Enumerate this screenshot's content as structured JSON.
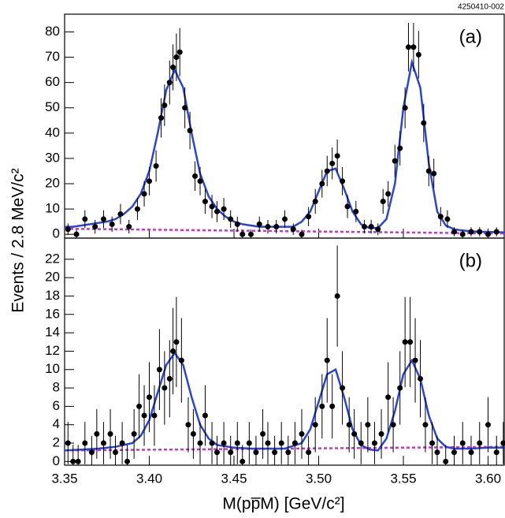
{
  "chart_data": [
    {
      "type": "errorbar",
      "label": "(a)",
      "annotation": "4250410-002",
      "ylabel": "Events / 2.8 MeV/c²",
      "x": [
        3.352,
        3.357,
        3.362,
        3.368,
        3.373,
        3.378,
        3.383,
        3.388,
        3.393,
        3.397,
        3.4,
        3.404,
        3.407,
        3.409,
        3.412,
        3.414,
        3.416,
        3.418,
        3.421,
        3.424,
        3.427,
        3.43,
        3.433,
        3.437,
        3.44,
        3.444,
        3.448,
        3.452,
        3.455,
        3.46,
        3.465,
        3.47,
        3.475,
        3.48,
        3.485,
        3.49,
        3.494,
        3.498,
        3.502,
        3.505,
        3.508,
        3.511,
        3.514,
        3.517,
        3.522,
        3.527,
        3.531,
        3.535,
        3.538,
        3.541,
        3.545,
        3.548,
        3.551,
        3.553,
        3.556,
        3.559,
        3.562,
        3.565,
        3.568,
        3.572,
        3.576,
        3.58,
        3.585,
        3.59,
        3.595,
        3.6,
        3.605
      ],
      "values": [
        2,
        0,
        6,
        3,
        6,
        4,
        8,
        3,
        10,
        16,
        21,
        27,
        46,
        51,
        60,
        66,
        70,
        72,
        50,
        41,
        23,
        21,
        13,
        11,
        9,
        10,
        6,
        4,
        0,
        0,
        4,
        3,
        3,
        6,
        2,
        0,
        7,
        13,
        20,
        25,
        28,
        31,
        21,
        11,
        9,
        3,
        3,
        2,
        13,
        16,
        29,
        34,
        50,
        74,
        74,
        71,
        44,
        25,
        24,
        7,
        6,
        1,
        0,
        1,
        1,
        0,
        1
      ],
      "errors": [
        2.3,
        1.8,
        3.5,
        2.7,
        3.5,
        3,
        4,
        2.7,
        4.4,
        5,
        5.6,
        6.2,
        7.8,
        8.2,
        8.7,
        9.1,
        9.4,
        9.5,
        8.1,
        7.4,
        5.8,
        5.6,
        4.9,
        4.6,
        4.2,
        4.4,
        3.5,
        3,
        1.8,
        1.8,
        3,
        2.7,
        2.7,
        3.5,
        2.3,
        1.8,
        3.8,
        4.9,
        5.5,
        6,
        6.3,
        6.5,
        5.6,
        4.6,
        4.2,
        2.7,
        2.7,
        2.3,
        4.9,
        5,
        6.4,
        6.8,
        8.1,
        9.6,
        9.6,
        9.4,
        7.6,
        6,
        5.9,
        3.8,
        3.5,
        1.8,
        1.8,
        1.8,
        1.8,
        1.8,
        1.8
      ],
      "color": "#000000",
      "fit": {
        "color": "#2a44d6",
        "x": [
          3.35,
          3.355,
          3.36,
          3.365,
          3.37,
          3.375,
          3.38,
          3.385,
          3.39,
          3.395,
          3.4,
          3.405,
          3.41,
          3.415,
          3.42,
          3.425,
          3.43,
          3.435,
          3.44,
          3.445,
          3.45,
          3.455,
          3.46,
          3.465,
          3.47,
          3.475,
          3.48,
          3.485,
          3.49,
          3.495,
          3.5,
          3.505,
          3.51,
          3.515,
          3.52,
          3.525,
          3.53,
          3.535,
          3.54,
          3.545,
          3.55,
          3.555,
          3.56,
          3.565,
          3.57,
          3.575,
          3.58,
          3.585,
          3.59,
          3.595,
          3.6,
          3.605,
          3.61
        ],
        "values": [
          3,
          3,
          3.5,
          4,
          4.5,
          5,
          6,
          8,
          11,
          16,
          25,
          40,
          57,
          65,
          58,
          40,
          24,
          15,
          10,
          7,
          5,
          4,
          3.5,
          3,
          3,
          3,
          3,
          3,
          5,
          9,
          17,
          25,
          26,
          18,
          9,
          4,
          2.5,
          2.5,
          6,
          20,
          50,
          68,
          58,
          28,
          9,
          3.5,
          2,
          1.5,
          1.2,
          1,
          1,
          0.8,
          0.8
        ]
      },
      "background": {
        "color": "#cc33cc",
        "x": [
          3.35,
          3.61
        ],
        "values": [
          2.2,
          0.3
        ]
      },
      "xlim": [
        3.35,
        3.61
      ],
      "xticks": [
        3.35,
        3.4,
        3.45,
        3.5,
        3.55,
        3.6
      ],
      "ylim": [
        -1.5,
        87
      ],
      "yticks": [
        0,
        10,
        20,
        30,
        40,
        50,
        60,
        70,
        80
      ]
    },
    {
      "type": "errorbar",
      "label": "(b)",
      "xlabel": "M(pp̅M) [GeV/c²]",
      "x": [
        3.352,
        3.355,
        3.358,
        3.362,
        3.366,
        3.369,
        3.373,
        3.377,
        3.38,
        3.384,
        3.387,
        3.391,
        3.394,
        3.397,
        3.4,
        3.403,
        3.406,
        3.409,
        3.412,
        3.414,
        3.416,
        3.419,
        3.423,
        3.426,
        3.43,
        3.433,
        3.437,
        3.44,
        3.444,
        3.448,
        3.452,
        3.455,
        3.459,
        3.463,
        3.467,
        3.47,
        3.474,
        3.478,
        3.482,
        3.486,
        3.49,
        3.494,
        3.498,
        3.502,
        3.505,
        3.508,
        3.511,
        3.514,
        3.518,
        3.521,
        3.525,
        3.529,
        3.533,
        3.537,
        3.541,
        3.544,
        3.548,
        3.551,
        3.554,
        3.557,
        3.56,
        3.563,
        3.567,
        3.57,
        3.575,
        3.58,
        3.585,
        3.59,
        3.595,
        3.6,
        3.605,
        3.609
      ],
      "values": [
        2,
        0,
        0,
        2,
        1,
        3,
        2,
        3,
        1,
        2,
        0,
        3,
        6,
        5,
        7,
        5,
        10,
        8,
        9,
        12,
        13,
        11,
        4,
        3,
        2,
        5,
        2,
        1,
        2,
        1,
        2,
        0,
        2,
        1,
        3,
        2,
        1,
        2,
        1,
        2,
        3,
        1,
        4,
        6,
        11,
        6,
        18,
        8,
        4,
        3,
        2,
        4,
        2,
        3,
        7,
        4,
        8,
        13,
        13,
        11,
        9,
        4,
        2,
        1,
        0,
        1,
        2,
        1,
        2,
        4,
        1,
        2
      ],
      "errors": [
        2.3,
        1.8,
        1.8,
        2.3,
        1.8,
        2.7,
        2.3,
        2.7,
        1.8,
        2.3,
        1.8,
        2.7,
        3.5,
        3.3,
        3.8,
        3.3,
        4.4,
        4,
        4.2,
        4.7,
        4.9,
        4.6,
        3,
        2.7,
        2.3,
        3.3,
        2.3,
        1.8,
        2.3,
        1.8,
        2.3,
        1.8,
        2.3,
        1.8,
        2.7,
        2.3,
        1.8,
        2.3,
        1.8,
        2.3,
        2.7,
        1.8,
        3,
        3.5,
        4.6,
        3.5,
        5.5,
        4,
        3,
        2.7,
        2.3,
        3,
        2.3,
        2.7,
        3.8,
        3,
        4,
        4.9,
        4.9,
        4.6,
        4.2,
        3,
        2.3,
        1.8,
        1.8,
        1.8,
        2.3,
        1.8,
        2.3,
        3,
        1.8,
        2.3
      ],
      "color": "#000000",
      "fit": {
        "color": "#2a44d6",
        "x": [
          3.35,
          3.36,
          3.37,
          3.38,
          3.39,
          3.395,
          3.4,
          3.405,
          3.41,
          3.415,
          3.42,
          3.425,
          3.43,
          3.435,
          3.44,
          3.45,
          3.46,
          3.47,
          3.48,
          3.49,
          3.495,
          3.5,
          3.505,
          3.51,
          3.515,
          3.52,
          3.525,
          3.53,
          3.535,
          3.54,
          3.545,
          3.55,
          3.555,
          3.56,
          3.565,
          3.57,
          3.575,
          3.58,
          3.59,
          3.6,
          3.61
        ],
        "values": [
          1.2,
          1.3,
          1.4,
          1.6,
          2.0,
          2.8,
          4.5,
          7.5,
          10.5,
          11.8,
          10.5,
          7,
          4,
          2.5,
          1.8,
          1.5,
          1.4,
          1.4,
          1.4,
          2,
          3.5,
          6.5,
          9.5,
          10,
          7,
          3.5,
          1.8,
          1.3,
          1.2,
          2.5,
          5.5,
          9.5,
          11,
          9,
          5,
          2.5,
          1.6,
          1.4,
          1.4,
          1.5,
          1.5
        ]
      },
      "background": {
        "color": "#cc33cc",
        "x": [
          3.35,
          3.61
        ],
        "values": [
          1.2,
          1.6
        ]
      },
      "xlim": [
        3.35,
        3.61
      ],
      "xticks": [
        3.35,
        {
          "value": 3.4,
          "label": "3.40"
        },
        3.45,
        {
          "value": 3.5,
          "label": "3.50"
        },
        3.55,
        {
          "value": 3.6,
          "label": "3.60"
        }
      ],
      "ylim": [
        -0.4,
        24.3
      ],
      "yticks": [
        0,
        2,
        4,
        6,
        8,
        10,
        12,
        14,
        16,
        18,
        20,
        22
      ]
    }
  ]
}
